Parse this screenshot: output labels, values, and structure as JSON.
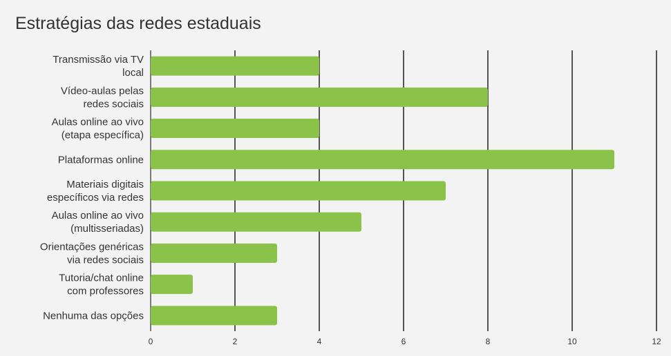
{
  "chart_data": {
    "type": "bar",
    "orientation": "horizontal",
    "title": "Estratégias das redes estaduais",
    "categories": [
      [
        "Transmissão via TV",
        "local"
      ],
      [
        "Vídeo-aulas pelas",
        "redes sociais"
      ],
      [
        "Aulas online ao vivo",
        "(etapa específica)"
      ],
      [
        "Plataformas online"
      ],
      [
        "Materiais digitais",
        "específicos via redes"
      ],
      [
        "Aulas online ao vivo",
        "(multisseriadas)"
      ],
      [
        "Orientações genéricas",
        "via redes sociais"
      ],
      [
        "Tutoria/chat online",
        "com professores"
      ],
      [
        "Nenhuma das opções"
      ]
    ],
    "values": [
      4,
      8,
      4,
      11,
      7,
      5,
      3,
      1,
      3
    ],
    "xlim": [
      0,
      12
    ],
    "xticks": [
      "0",
      "2",
      "4",
      "6",
      "8",
      "10",
      "12"
    ],
    "xticks_values": [
      0,
      2,
      4,
      6,
      8,
      10,
      12
    ],
    "xlabel": "",
    "ylabel": "",
    "grid": true,
    "bar_color": "#8bc34a",
    "grid_color": "#000000",
    "text_color": "#333333"
  }
}
